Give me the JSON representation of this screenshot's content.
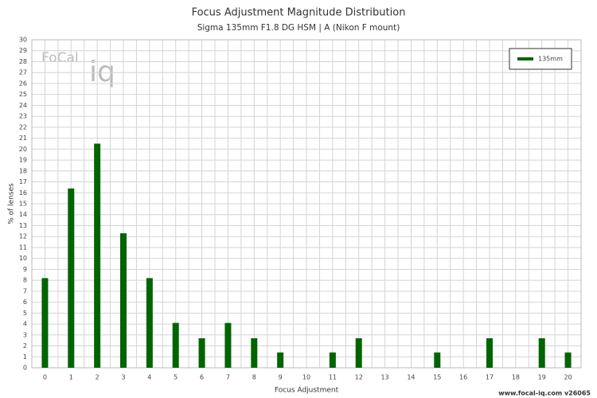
{
  "chart_data": {
    "type": "bar",
    "title": "Focus Adjustment Magnitude Distribution",
    "subtitle": "Sigma 135mm F1.8 DG HSM | A (Nikon F mount)",
    "x_label": "Focus Adjustment",
    "y_label": "% of lenses",
    "categories": [
      "0",
      "1",
      "2",
      "3",
      "4",
      "5",
      "6",
      "7",
      "8",
      "9",
      "10",
      "11",
      "12",
      "13",
      "14",
      "15",
      "16",
      "17",
      "18",
      "19",
      "20"
    ],
    "series": [
      {
        "name": "135mm",
        "color": "#006400",
        "values": [
          8.2,
          16.4,
          20.5,
          12.3,
          8.2,
          4.1,
          2.7,
          4.1,
          2.7,
          1.4,
          0,
          1.4,
          2.7,
          0,
          0,
          1.4,
          0,
          2.7,
          0,
          2.7,
          1.4
        ]
      }
    ],
    "ylim": [
      0,
      30
    ],
    "yticks": [
      0,
      1,
      2,
      3,
      4,
      5,
      6,
      7,
      8,
      9,
      10,
      11,
      12,
      13,
      14,
      15,
      16,
      17,
      18,
      19,
      20,
      21,
      22,
      23,
      24,
      25,
      26,
      27,
      28,
      29,
      30
    ],
    "grid": true,
    "legend": "top-right",
    "logo": {
      "text1": "FoCal",
      "text2": "iq"
    },
    "footer": "www.focal-iq.com  v26065"
  }
}
